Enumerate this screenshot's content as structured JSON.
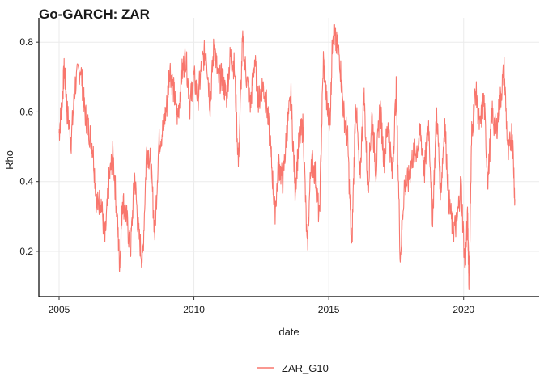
{
  "chart_data": {
    "type": "line",
    "title": "Go-GARCH: ZAR",
    "xlabel": "date",
    "ylabel": "Rho",
    "x_ticks": [
      "2005",
      "2010",
      "2015",
      "2020"
    ],
    "y_ticks": [
      "0.2",
      "0.4",
      "0.6",
      "0.8"
    ],
    "xlim": [
      2004.25,
      2022.8
    ],
    "ylim": [
      0.07,
      0.87
    ],
    "grid": true,
    "legend_position": "bottom",
    "series": [
      {
        "name": "ZAR_G10",
        "color": "#F8766D",
        "x": [
          2005.0,
          2005.1,
          2005.2,
          2005.3,
          2005.45,
          2005.6,
          2005.8,
          2005.95,
          2006.1,
          2006.25,
          2006.4,
          2006.55,
          2006.7,
          2006.85,
          2007.0,
          2007.15,
          2007.25,
          2007.35,
          2007.5,
          2007.65,
          2007.8,
          2007.95,
          2008.1,
          2008.25,
          2008.4,
          2008.55,
          2008.7,
          2008.85,
          2009.0,
          2009.1,
          2009.25,
          2009.4,
          2009.55,
          2009.7,
          2009.85,
          2010.0,
          2010.15,
          2010.3,
          2010.45,
          2010.6,
          2010.75,
          2010.9,
          2011.05,
          2011.2,
          2011.35,
          2011.5,
          2011.65,
          2011.8,
          2011.95,
          2012.1,
          2012.25,
          2012.4,
          2012.55,
          2012.7,
          2012.85,
          2013.0,
          2013.15,
          2013.3,
          2013.45,
          2013.6,
          2013.75,
          2013.9,
          2014.05,
          2014.2,
          2014.35,
          2014.5,
          2014.65,
          2014.8,
          2014.95,
          2015.05,
          2015.15,
          2015.25,
          2015.4,
          2015.55,
          2015.7,
          2015.85,
          2016.0,
          2016.15,
          2016.3,
          2016.45,
          2016.6,
          2016.75,
          2016.9,
          2017.05,
          2017.2,
          2017.35,
          2017.5,
          2017.65,
          2017.8,
          2017.95,
          2018.1,
          2018.25,
          2018.4,
          2018.55,
          2018.7,
          2018.85,
          2019.0,
          2019.15,
          2019.3,
          2019.45,
          2019.6,
          2019.75,
          2019.9,
          2020.05,
          2020.15,
          2020.2,
          2020.3,
          2020.45,
          2020.6,
          2020.75,
          2020.9,
          2021.05,
          2021.2,
          2021.35,
          2021.5,
          2021.65,
          2021.8,
          2021.9
        ],
        "y": [
          0.54,
          0.62,
          0.73,
          0.6,
          0.52,
          0.68,
          0.73,
          0.6,
          0.55,
          0.5,
          0.33,
          0.35,
          0.23,
          0.4,
          0.48,
          0.3,
          0.16,
          0.35,
          0.3,
          0.2,
          0.42,
          0.25,
          0.17,
          0.5,
          0.45,
          0.25,
          0.51,
          0.55,
          0.62,
          0.73,
          0.66,
          0.58,
          0.71,
          0.76,
          0.62,
          0.7,
          0.64,
          0.74,
          0.78,
          0.62,
          0.8,
          0.69,
          0.7,
          0.64,
          0.76,
          0.73,
          0.45,
          0.8,
          0.7,
          0.62,
          0.75,
          0.63,
          0.68,
          0.62,
          0.49,
          0.31,
          0.45,
          0.4,
          0.55,
          0.64,
          0.38,
          0.52,
          0.56,
          0.2,
          0.47,
          0.42,
          0.29,
          0.75,
          0.6,
          0.58,
          0.84,
          0.8,
          0.76,
          0.6,
          0.52,
          0.2,
          0.64,
          0.4,
          0.66,
          0.38,
          0.59,
          0.43,
          0.62,
          0.46,
          0.57,
          0.42,
          0.66,
          0.18,
          0.39,
          0.4,
          0.47,
          0.49,
          0.54,
          0.43,
          0.57,
          0.3,
          0.6,
          0.37,
          0.57,
          0.35,
          0.26,
          0.28,
          0.4,
          0.15,
          0.3,
          0.1,
          0.54,
          0.66,
          0.55,
          0.64,
          0.4,
          0.6,
          0.54,
          0.63,
          0.72,
          0.47,
          0.55,
          0.35
        ]
      }
    ]
  }
}
